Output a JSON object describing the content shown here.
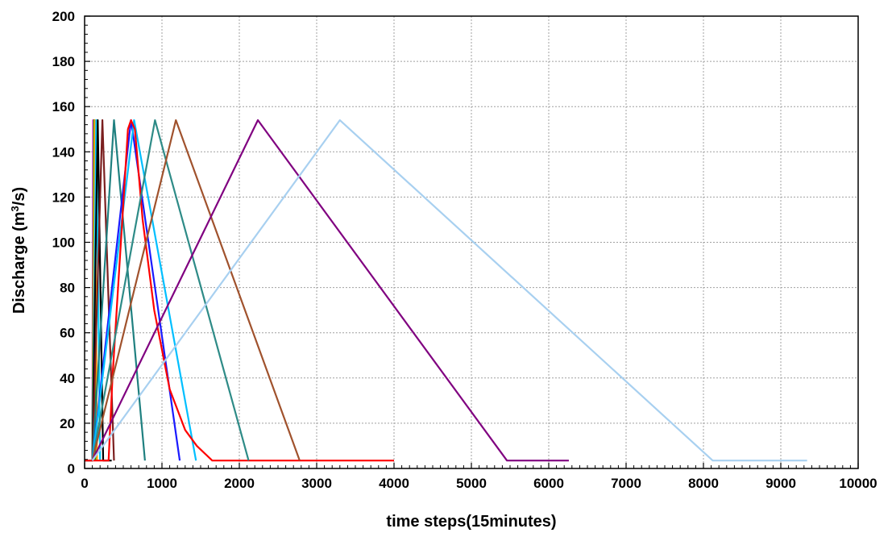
{
  "chart_data": {
    "type": "line",
    "title": "",
    "xlabel": "time steps(15minutes)",
    "ylabel_main": "Discharge (m",
    "ylabel_sup": "3",
    "ylabel_tail": "/s)",
    "xlim": [
      0,
      10000
    ],
    "ylim": [
      0,
      200
    ],
    "x_ticks": [
      0,
      1000,
      2000,
      3000,
      4000,
      5000,
      6000,
      7000,
      8000,
      9000,
      10000
    ],
    "y_ticks": [
      0,
      20,
      40,
      60,
      80,
      100,
      120,
      140,
      160,
      180,
      200
    ],
    "x_tick_labels": [
      "0",
      "1000",
      "2000",
      "3000",
      "4000",
      "5000",
      "6000",
      "7000",
      "8000",
      "9000",
      "10000"
    ],
    "y_tick_labels": [
      "0",
      "20",
      "40",
      "60",
      "80",
      "100",
      "120",
      "140",
      "160",
      "180",
      "200"
    ],
    "grid": true,
    "legend": "none",
    "series": [
      {
        "color": "#ff00ff",
        "x": [
          100,
          110,
          130
        ],
        "y": [
          3.5,
          154,
          3.5
        ]
      },
      {
        "color": "#00aa00",
        "x": [
          100,
          120,
          140
        ],
        "y": [
          3.5,
          154,
          3.5
        ]
      },
      {
        "color": "#ff9900",
        "x": [
          100,
          130,
          160
        ],
        "y": [
          3.5,
          154,
          3.5
        ]
      },
      {
        "color": "#00ccff",
        "x": [
          100,
          150,
          200
        ],
        "y": [
          3.5,
          154,
          3.5
        ]
      },
      {
        "color": "#000000",
        "x": [
          0,
          100,
          170,
          240,
          350
        ],
        "y": [
          3.5,
          3.5,
          154,
          3.5,
          3.5
        ]
      },
      {
        "color": "#7b1f1f",
        "x": [
          100,
          230,
          380
        ],
        "y": [
          3.5,
          154,
          3.5
        ]
      },
      {
        "color": "#1f8080",
        "x": [
          100,
          380,
          780
        ],
        "y": [
          3.5,
          154,
          3.5
        ]
      },
      {
        "color": "#1a1aff",
        "x": [
          100,
          600,
          1230
        ],
        "y": [
          3.5,
          154,
          3.5
        ]
      },
      {
        "color": "#00bfff",
        "x": [
          100,
          640,
          1440
        ],
        "y": [
          3.5,
          154,
          3.5
        ]
      },
      {
        "color": "#ff0000",
        "x": [
          0,
          310,
          360,
          560,
          600,
          650,
          750,
          900,
          1100,
          1300,
          1450,
          1650,
          4000
        ],
        "y": [
          3.5,
          3.5,
          40,
          150,
          154,
          150,
          110,
          70,
          35,
          17,
          10,
          3.5,
          3.5
        ]
      },
      {
        "color": "#2e8b87",
        "x": [
          100,
          910,
          2120
        ],
        "y": [
          3.5,
          154,
          3.5
        ]
      },
      {
        "color": "#a0522d",
        "x": [
          100,
          1180,
          2780
        ],
        "y": [
          3.5,
          154,
          3.5
        ]
      },
      {
        "color": "#800080",
        "x": [
          100,
          2240,
          5460,
          6260
        ],
        "y": [
          3.5,
          154,
          3.5,
          3.5
        ]
      },
      {
        "color": "#a8d0f0",
        "x": [
          100,
          3300,
          8120,
          9340
        ],
        "y": [
          3.5,
          154,
          3.5,
          3.5
        ]
      }
    ]
  }
}
